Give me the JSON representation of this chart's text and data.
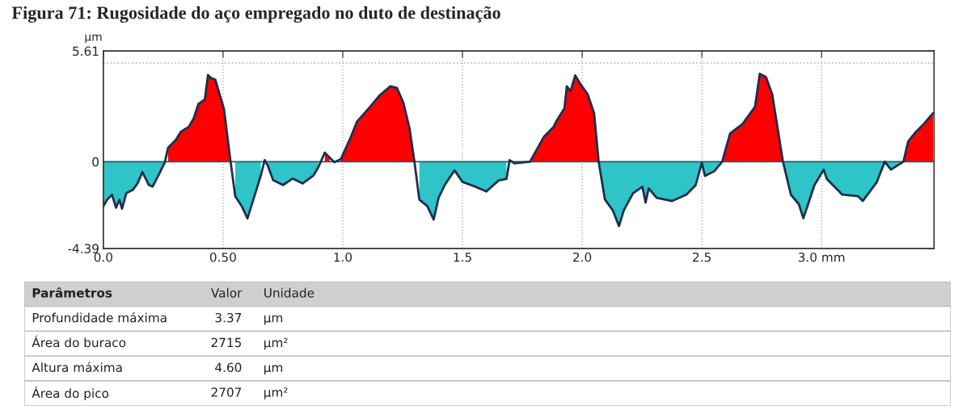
{
  "chart_data": {
    "type": "area",
    "title": "Figura 71: Rugosidade do aço empregado no duto de destinação",
    "ylabel": "µm",
    "x": [
      0,
      0.016,
      0.036,
      0.053,
      0.067,
      0.078,
      0.096,
      0.123,
      0.143,
      0.163,
      0.19,
      0.206,
      0.23,
      0.257,
      0.27,
      0.303,
      0.324,
      0.357,
      0.377,
      0.397,
      0.424,
      0.437,
      0.451,
      0.468,
      0.504,
      0.531,
      0.551,
      0.578,
      0.602,
      0.631,
      0.658,
      0.674,
      0.687,
      0.709,
      0.751,
      0.791,
      0.832,
      0.878,
      0.898,
      0.925,
      0.945,
      0.965,
      0.992,
      1.032,
      1.059,
      1.112,
      1.152,
      1.199,
      1.226,
      1.253,
      1.279,
      1.299,
      1.32,
      1.353,
      1.38,
      1.4,
      1.426,
      1.467,
      1.5,
      1.553,
      1.6,
      1.651,
      1.684,
      1.697,
      1.717,
      1.782,
      1.808,
      1.841,
      1.88,
      1.893,
      1.926,
      1.936,
      1.952,
      1.971,
      1.991,
      2.023,
      2.05,
      2.069,
      2.095,
      2.128,
      2.154,
      2.174,
      2.213,
      2.252,
      2.265,
      2.278,
      2.311,
      2.376,
      2.435,
      2.474,
      2.5,
      2.513,
      2.552,
      2.585,
      2.618,
      2.67,
      2.722,
      2.742,
      2.768,
      2.794,
      2.839,
      2.872,
      2.905,
      2.924,
      2.944,
      2.97,
      3.009,
      3.022,
      3.087,
      3.153,
      3.172,
      3.231,
      3.264,
      3.29,
      3.342,
      3.362,
      3.394,
      3.427,
      3.466
    ],
    "series": [
      {
        "color": "#ff0000",
        "values": [
          null,
          null,
          null,
          null,
          null,
          null,
          null,
          null,
          null,
          null,
          null,
          null,
          null,
          null,
          0.7,
          1.11,
          1.52,
          1.77,
          2.18,
          2.92,
          3.16,
          4.39,
          4.23,
          4.15,
          2.67,
          0.05,
          null,
          null,
          null,
          null,
          null,
          null,
          null,
          null,
          null,
          null,
          null,
          null,
          null,
          0.46,
          0.21,
          null,
          0.13,
          1.2,
          2.02,
          2.75,
          3.33,
          3.82,
          3.74,
          3.0,
          1.69,
          0.05,
          null,
          null,
          null,
          null,
          null,
          null,
          null,
          null,
          null,
          null,
          null,
          null,
          null,
          0,
          0.56,
          1.27,
          1.75,
          2.07,
          2.7,
          3.82,
          3.58,
          4.37,
          3.97,
          3.42,
          2.46,
          0,
          null,
          null,
          null,
          null,
          null,
          null,
          null,
          null,
          null,
          null,
          null,
          null,
          null,
          null,
          null,
          0,
          1.43,
          1.91,
          2.78,
          4.45,
          4.29,
          3.42,
          0,
          null,
          null,
          null,
          null,
          null,
          null,
          null,
          null,
          null,
          null,
          null,
          null,
          null,
          0,
          1.03,
          1.51,
          1.91,
          2.46
        ]
      },
      {
        "color": "#2ec4c8",
        "values": [
          -2.25,
          -1.92,
          -1.67,
          -2.33,
          -1.92,
          -2.38,
          -1.59,
          -1.43,
          -1.1,
          -0.52,
          -1.18,
          -1.26,
          -0.69,
          -0.03,
          null,
          null,
          null,
          null,
          null,
          null,
          null,
          null,
          null,
          null,
          null,
          null,
          -1.75,
          -2.25,
          -2.87,
          -1.75,
          -0.69,
          null,
          -0.2,
          -0.93,
          -1.18,
          -0.85,
          -1.1,
          -0.69,
          -0.28,
          null,
          null,
          null,
          null,
          null,
          null,
          null,
          null,
          null,
          null,
          null,
          null,
          null,
          -1.92,
          -2.25,
          -2.93,
          -1.84,
          -1.18,
          -0.44,
          -1.02,
          -1.26,
          -1.51,
          -0.95,
          -0.87,
          null,
          -0.08,
          0,
          null,
          null,
          null,
          null,
          null,
          null,
          null,
          null,
          null,
          null,
          null,
          0,
          -1.91,
          -2.46,
          -3.26,
          -2.46,
          -1.59,
          -1.27,
          -2.07,
          -1.35,
          -1.83,
          -1.99,
          -1.67,
          -1.19,
          -0.05,
          -0.72,
          -0.48,
          0,
          null,
          null,
          null,
          null,
          null,
          null,
          0,
          -1.67,
          -2.15,
          -2.86,
          -2.15,
          -1.19,
          -0.4,
          -0.87,
          -1.67,
          -1.75,
          -1.99,
          -1.03,
          0,
          -0.4,
          0,
          null,
          null,
          null,
          null
        ]
      },
      {
        "type": "line",
        "color": "#1b2f4f",
        "values": [
          -2.25,
          -1.92,
          -1.67,
          -2.33,
          -1.92,
          -2.38,
          -1.59,
          -1.43,
          -1.1,
          -0.52,
          -1.18,
          -1.26,
          -0.69,
          -0.03,
          0.7,
          1.11,
          1.52,
          1.77,
          2.18,
          2.92,
          3.16,
          4.39,
          4.23,
          4.15,
          2.67,
          0.05,
          -1.75,
          -2.25,
          -2.87,
          -1.75,
          -0.69,
          0.08,
          -0.2,
          -0.93,
          -1.18,
          -0.85,
          -1.1,
          -0.69,
          -0.28,
          0.46,
          0.21,
          -0.03,
          0.13,
          1.2,
          2.02,
          2.75,
          3.33,
          3.82,
          3.74,
          3.0,
          1.69,
          0.05,
          -1.92,
          -2.25,
          -2.93,
          -1.84,
          -1.18,
          -0.44,
          -1.02,
          -1.26,
          -1.51,
          -0.95,
          -0.87,
          0.08,
          -0.08,
          0,
          0.56,
          1.27,
          1.75,
          2.07,
          2.7,
          3.82,
          3.58,
          4.37,
          3.97,
          3.42,
          2.46,
          0,
          -1.91,
          -2.46,
          -3.26,
          -2.46,
          -1.59,
          -1.27,
          -2.07,
          -1.35,
          -1.83,
          -1.99,
          -1.67,
          -1.19,
          -0.05,
          -0.72,
          -0.48,
          0,
          1.43,
          1.91,
          2.78,
          4.45,
          4.29,
          3.42,
          0,
          -1.67,
          -2.15,
          -2.86,
          -2.15,
          -1.19,
          -0.4,
          -0.87,
          -1.67,
          -1.75,
          -1.99,
          -1.03,
          0,
          -0.4,
          0,
          1.03,
          1.51,
          1.91,
          2.46
        ]
      }
    ],
    "xlim": [
      0,
      3.47
    ],
    "ylim": [
      -4.39,
      5.61
    ],
    "xticks": [
      {
        "value": 0,
        "label": "0.0"
      },
      {
        "value": 0.5,
        "label": "0.50"
      },
      {
        "value": 1,
        "label": "1.0"
      },
      1.5,
      {
        "value": 2,
        "label": "2.0"
      },
      2.5,
      {
        "value": 3,
        "label": "3.0 mm"
      }
    ],
    "yticks": [
      5.61,
      0,
      -4.39
    ],
    "grid": "x",
    "ref_lines": [
      {
        "axis": "y",
        "value": 5.0,
        "color": "#b0b0b0",
        "line_style": "dotted"
      },
      {
        "axis": "y",
        "value": 0,
        "color": "#2a5a6a",
        "line_style": "solid"
      }
    ],
    "annotations": [
      "Parâmetros",
      "Valor",
      "Unidade",
      "Profundidade máxima",
      "3.37",
      "µm",
      "Área do buraco",
      "2715",
      "µm²",
      "Altura máxima",
      "4.60",
      "µm",
      "Área do pico",
      "2707",
      "µm²"
    ]
  }
}
